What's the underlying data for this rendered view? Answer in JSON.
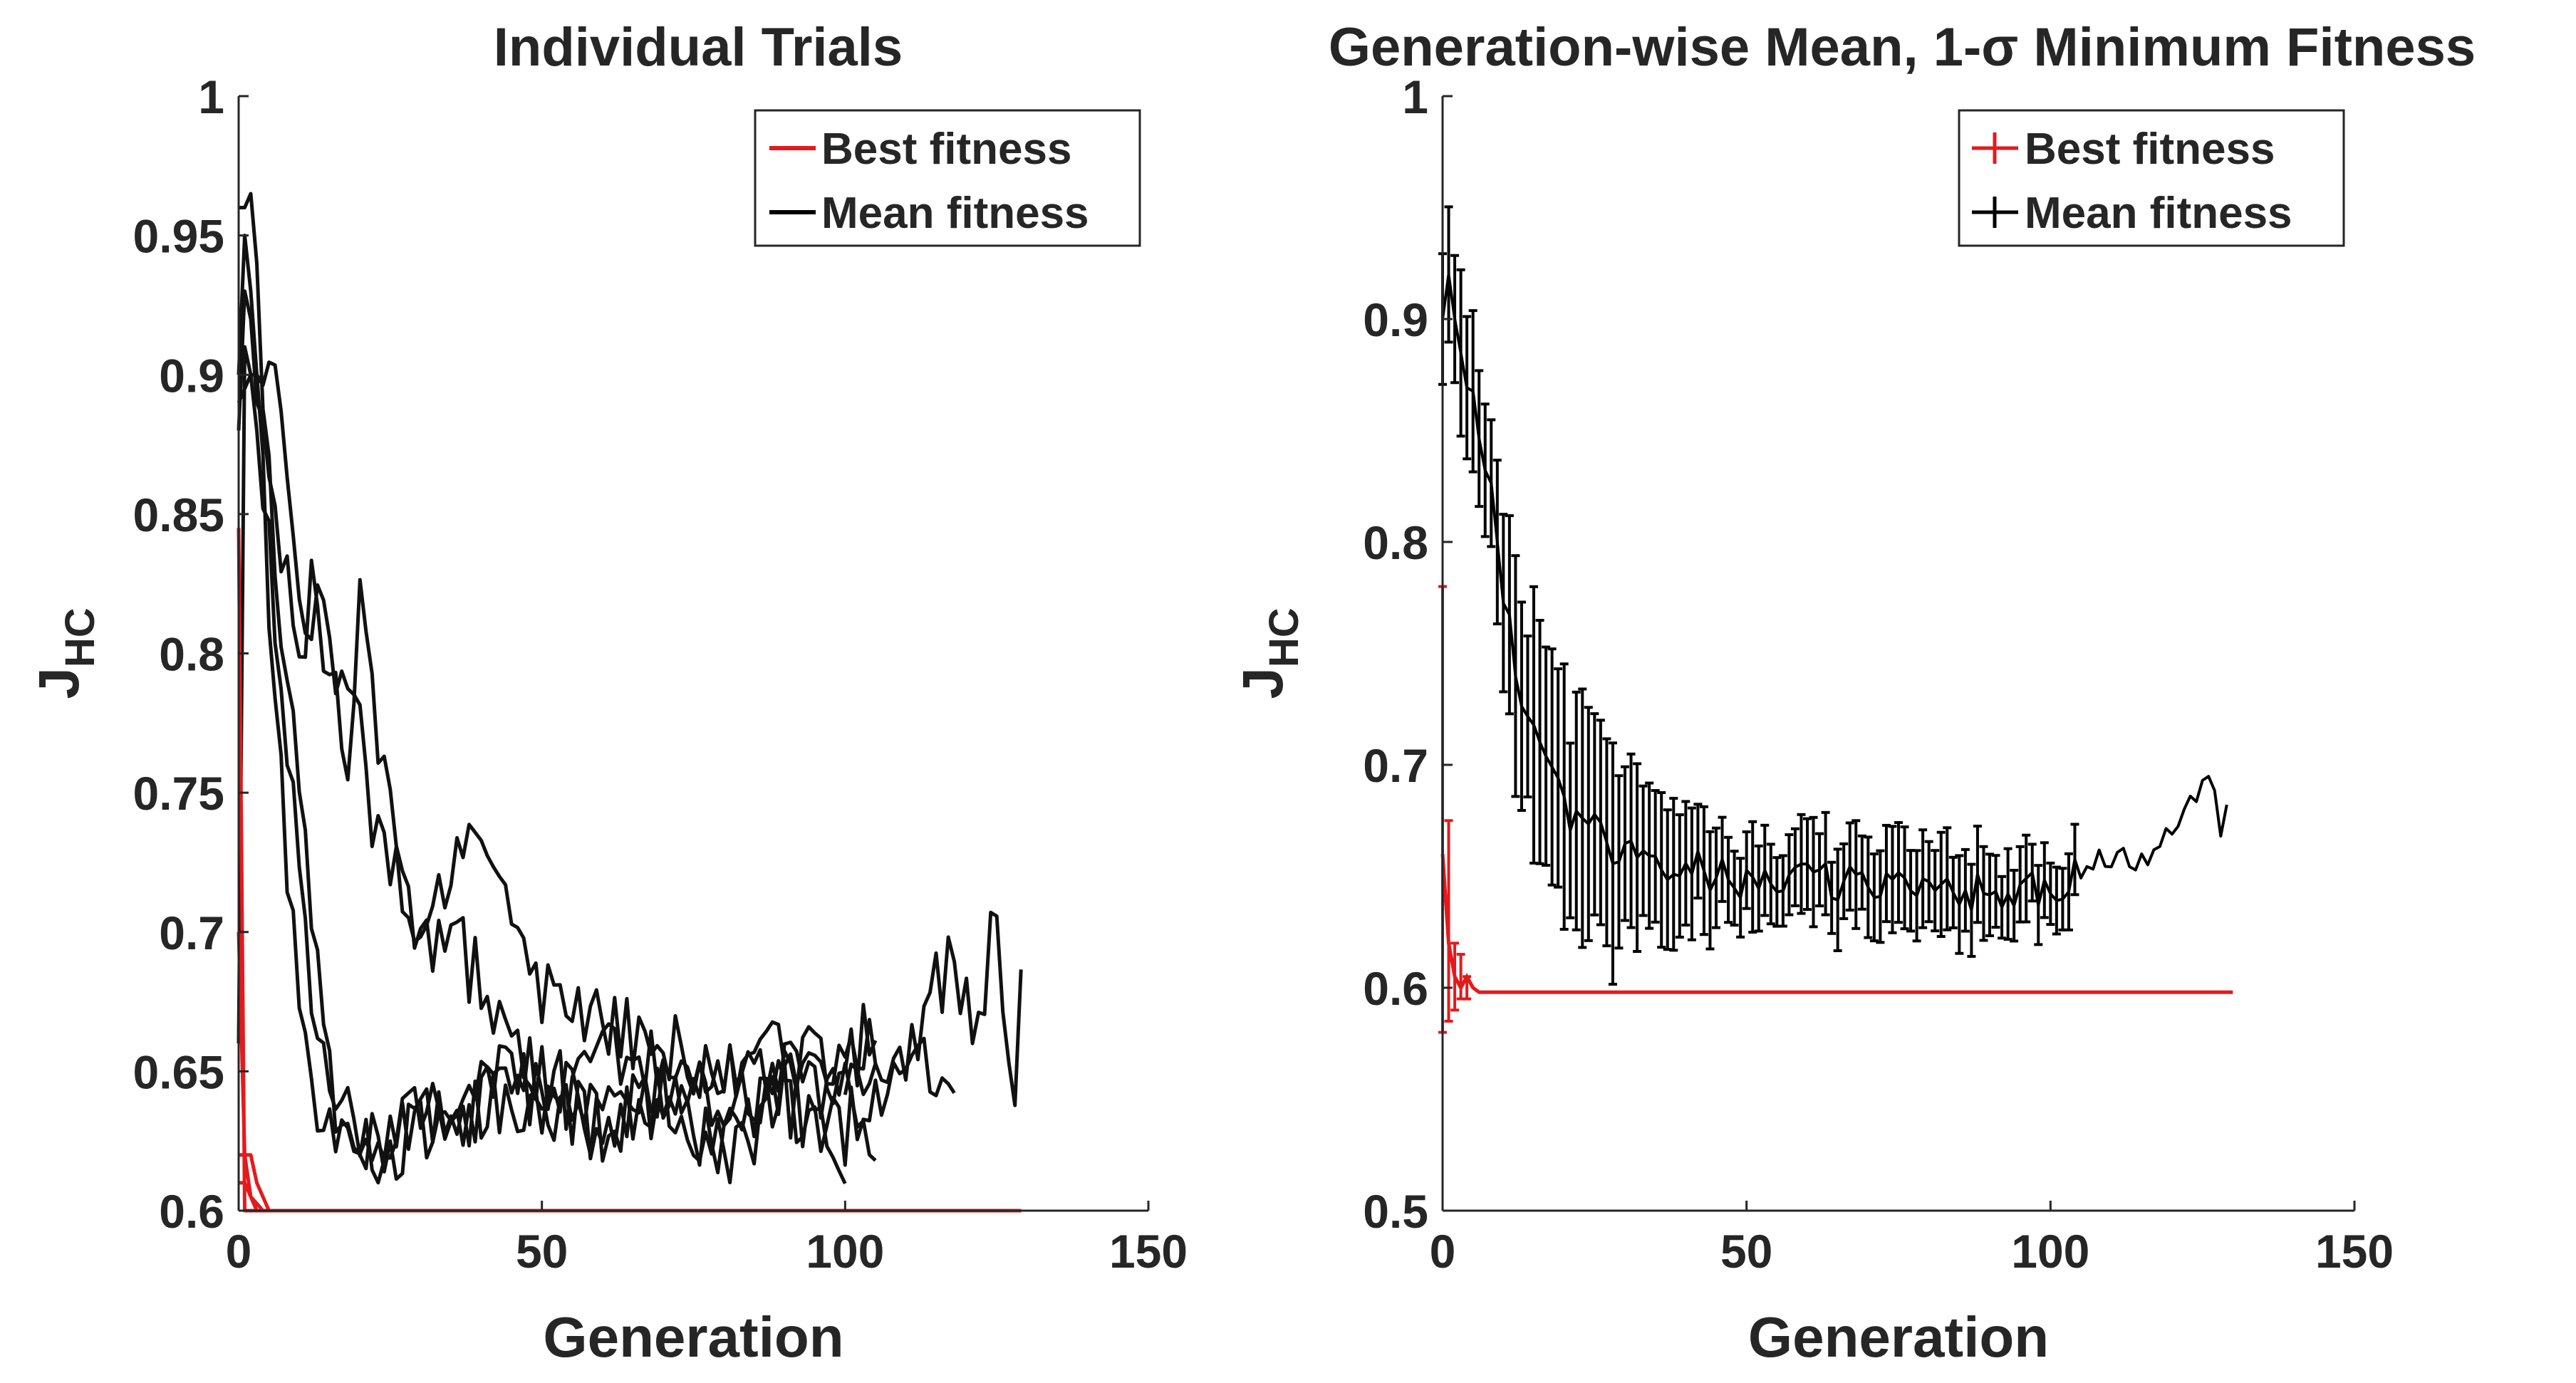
{
  "chart_data": [
    {
      "type": "line",
      "title": "Individual Trials",
      "xlabel": "Generation",
      "ylabel_main": "J",
      "ylabel_sub": "HC",
      "xlim": [
        0,
        150
      ],
      "ylim": [
        0.6,
        1.0
      ],
      "xticks": [
        0,
        50,
        100,
        150
      ],
      "xtick_labels": [
        "0",
        "50",
        "100",
        "150"
      ],
      "yticks": [
        0.6,
        0.65,
        0.7,
        0.75,
        0.8,
        0.85,
        0.9,
        0.95,
        1.0
      ],
      "ytick_labels": [
        "0.6",
        "0.65",
        "0.7",
        "0.75",
        "0.8",
        "0.85",
        "0.9",
        "0.95",
        "1"
      ],
      "legend_location": "top-right",
      "legend": [
        {
          "label": "Best fitness",
          "color": "#e41a1c"
        },
        {
          "label": "Mean fitness",
          "color": "#000000"
        }
      ],
      "mean_trials": [
        {
          "x": [
            0,
            1,
            2,
            3,
            4,
            5,
            6,
            8,
            10,
            12,
            14,
            16,
            20,
            25,
            30,
            35,
            40,
            50,
            60,
            70,
            80,
            90,
            100,
            105
          ],
          "y": [
            0.9,
            0.95,
            0.93,
            0.9,
            0.86,
            0.82,
            0.78,
            0.72,
            0.67,
            0.64,
            0.63,
            0.62,
            0.625,
            0.63,
            0.64,
            0.63,
            0.65,
            0.64,
            0.63,
            0.64,
            0.62,
            0.65,
            0.64,
            0.63
          ]
        },
        {
          "x": [
            0,
            1,
            2,
            3,
            4,
            5,
            6,
            8,
            10,
            12,
            14,
            16,
            20,
            25,
            30,
            35,
            40,
            50,
            60,
            70,
            80,
            90,
            100,
            110,
            118
          ],
          "y": [
            0.96,
            0.96,
            0.965,
            0.94,
            0.9,
            0.86,
            0.83,
            0.79,
            0.75,
            0.7,
            0.66,
            0.64,
            0.63,
            0.62,
            0.63,
            0.625,
            0.64,
            0.65,
            0.63,
            0.64,
            0.65,
            0.64,
            0.63,
            0.655,
            0.655
          ]
        },
        {
          "x": [
            0,
            1,
            2,
            3,
            5,
            7,
            10,
            12,
            15,
            18,
            20,
            22,
            25,
            28,
            30,
            35,
            40,
            45,
            50,
            55,
            60,
            70,
            80,
            90,
            100,
            105
          ],
          "y": [
            0.88,
            0.93,
            0.92,
            0.89,
            0.87,
            0.84,
            0.8,
            0.82,
            0.79,
            0.76,
            0.82,
            0.78,
            0.75,
            0.72,
            0.69,
            0.7,
            0.68,
            0.66,
            0.65,
            0.64,
            0.66,
            0.65,
            0.64,
            0.66,
            0.65,
            0.66
          ]
        },
        {
          "x": [
            0,
            2,
            4,
            6,
            8,
            10,
            12,
            13,
            15,
            18,
            20,
            22,
            25,
            27,
            30,
            33,
            35,
            37,
            40,
            45,
            50,
            60,
            70,
            80,
            90,
            100,
            105
          ],
          "y": [
            0.89,
            0.9,
            0.9,
            0.89,
            0.86,
            0.83,
            0.81,
            0.835,
            0.8,
            0.78,
            0.77,
            0.74,
            0.73,
            0.72,
            0.705,
            0.71,
            0.73,
            0.74,
            0.72,
            0.7,
            0.675,
            0.67,
            0.66,
            0.65,
            0.655,
            0.65,
            0.67
          ]
        },
        {
          "x": [
            0,
            1,
            2,
            3,
            5,
            8,
            10,
            12,
            14,
            16,
            18,
            20,
            22,
            25,
            30,
            35,
            40,
            50,
            60,
            70,
            80,
            90,
            100
          ],
          "y": [
            0.66,
            0.91,
            0.9,
            0.88,
            0.84,
            0.76,
            0.72,
            0.68,
            0.66,
            0.645,
            0.635,
            0.63,
            0.62,
            0.625,
            0.63,
            0.64,
            0.635,
            0.64,
            0.63,
            0.645,
            0.62,
            0.64,
            0.62
          ]
        },
        {
          "x": [
            100,
            105,
            110,
            115,
            118,
            120,
            122,
            124,
            125,
            126,
            127,
            128,
            129
          ],
          "y": [
            0.65,
            0.64,
            0.66,
            0.68,
            0.69,
            0.67,
            0.66,
            0.7,
            0.71,
            0.68,
            0.66,
            0.65,
            0.69
          ]
        }
      ],
      "best_trials": [
        {
          "x": [
            0,
            1,
            2,
            3,
            129
          ],
          "y": [
            0.845,
            0.6,
            0.6,
            0.6,
            0.6
          ]
        },
        {
          "x": [
            0,
            1,
            2,
            4,
            129
          ],
          "y": [
            0.7,
            0.62,
            0.605,
            0.6,
            0.6
          ]
        },
        {
          "x": [
            0,
            2,
            3,
            5,
            129
          ],
          "y": [
            0.62,
            0.62,
            0.61,
            0.6,
            0.6
          ]
        },
        {
          "x": [
            0,
            1,
            3,
            129
          ],
          "y": [
            0.61,
            0.61,
            0.6,
            0.6
          ]
        }
      ]
    },
    {
      "type": "line",
      "title": "Generation-wise Mean, 1-σ Minimum Fitness",
      "xlabel": "Generation",
      "ylabel_main": "J",
      "ylabel_sub": "HC",
      "xlim": [
        0,
        150
      ],
      "ylim": [
        0.5,
        1.0
      ],
      "xticks": [
        0,
        50,
        100,
        150
      ],
      "xtick_labels": [
        "0",
        "50",
        "100",
        "150"
      ],
      "yticks": [
        0.5,
        0.6,
        0.7,
        0.8,
        0.9,
        1.0
      ],
      "ytick_labels": [
        "0.5",
        "0.6",
        "0.7",
        "0.8",
        "0.9",
        "1"
      ],
      "legend_location": "top-right",
      "legend": [
        {
          "label": "Best fitness",
          "color": "#e41a1c"
        },
        {
          "label": "Mean fitness",
          "color": "#000000"
        }
      ],
      "mean_anchor_x": [
        0,
        1,
        2,
        3,
        5,
        8,
        10,
        12,
        15,
        18,
        20,
        25,
        30,
        35,
        40,
        50,
        60,
        70,
        80,
        90,
        100,
        105,
        110,
        115,
        120,
        125,
        126,
        128,
        129
      ],
      "mean_anchor_y": [
        0.9,
        0.92,
        0.9,
        0.88,
        0.87,
        0.82,
        0.78,
        0.74,
        0.71,
        0.7,
        0.68,
        0.67,
        0.66,
        0.65,
        0.655,
        0.645,
        0.65,
        0.645,
        0.65,
        0.64,
        0.645,
        0.65,
        0.66,
        0.655,
        0.665,
        0.69,
        0.7,
        0.67,
        0.69
      ],
      "std_anchor_x": [
        0,
        5,
        10,
        15,
        20,
        25,
        30,
        40,
        50,
        60,
        80,
        100,
        104,
        105,
        130
      ],
      "std_anchor_y": [
        0.03,
        0.03,
        0.04,
        0.05,
        0.05,
        0.05,
        0.04,
        0.025,
        0.02,
        0.02,
        0.02,
        0.015,
        0.015,
        0.0,
        0.0
      ],
      "best_mean": {
        "x": [
          0,
          1,
          2,
          3,
          4,
          5,
          6,
          130
        ],
        "y": [
          0.66,
          0.62,
          0.605,
          0.6,
          0.605,
          0.6,
          0.598,
          0.598
        ]
      },
      "best_err": {
        "x": [
          0,
          1,
          2,
          3,
          4
        ],
        "y": [
          0.68,
          0.63,
          0.605,
          0.605,
          0.6
        ],
        "e": [
          0.1,
          0.045,
          0.015,
          0.01,
          0.005
        ]
      }
    }
  ]
}
